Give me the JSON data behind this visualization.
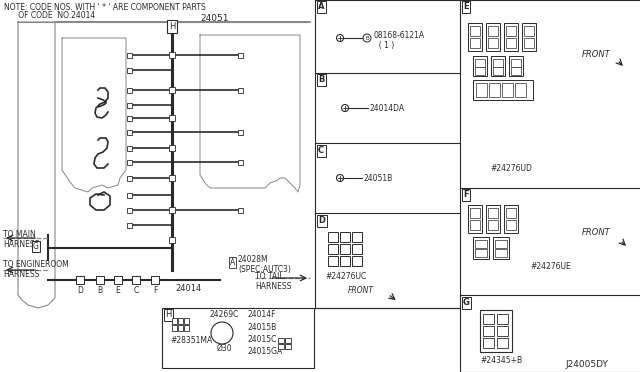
{
  "bg_color": "#ffffff",
  "line_color": "#2a2a2a",
  "gray_line": "#888888",
  "title": "J24005DY",
  "note_line1": "NOTE: CODE NOS. WITH ' * ' ARE COMPONENT PARTS",
  "note_line2": "      OF CODE  NO.24014",
  "part_A": "08168-6121A\n  ( 1 )",
  "part_B": "24014DA",
  "part_C": "24051B",
  "part_D": "#24276UC",
  "part_E": "#24276UD",
  "part_F": "#24276UE",
  "part_G": "#24345+B",
  "part_H": "#28351MA",
  "part_24051": "24051",
  "part_24014": "24014",
  "part_24028m": "24028M\n(SPEC:AUTC3)",
  "part_24269c": "24269C",
  "cyl_size": "Ø30",
  "multi_parts": "24014F\n24015B\n24015C\n24015GA",
  "to_main": "TO MAIN\nHARNESS",
  "to_engine": "TO ENGINEROOM\nHARNESS",
  "to_tail": "TO TAIL\nHARNESS",
  "front": "FRONT"
}
